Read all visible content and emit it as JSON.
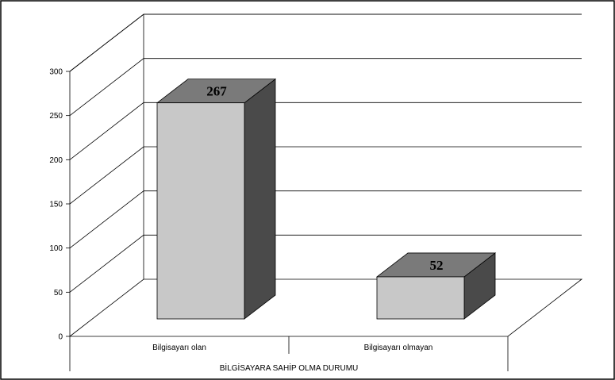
{
  "chart_data": {
    "type": "bar",
    "style": "3d-column",
    "categories": [
      "Bilgisayarı olan",
      "Bilgisayarı olmayan"
    ],
    "values": [
      267,
      52
    ],
    "data_labels": [
      "267",
      "52"
    ],
    "title": "",
    "xlabel": "BİLGİSAYARA SAHİP OLMA DURUMU",
    "ylabel": "",
    "ylim": [
      0,
      300
    ],
    "yticks": [
      "0",
      "50",
      "100",
      "150",
      "200",
      "250",
      "300"
    ],
    "grid": true,
    "legend": "none"
  },
  "colors": {
    "bar_front": "#c8c8c8",
    "bar_side": "#4a4a4a",
    "bar_top": "#7a7a7a",
    "grid": "#000000"
  }
}
